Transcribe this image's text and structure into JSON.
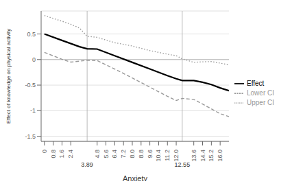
{
  "chart_data": {
    "type": "line",
    "xlabel": "Anxiety",
    "ylabel": "Effect of knowledge on physical activity",
    "xlim": [
      -0.3,
      16.8
    ],
    "ylim": [
      -1.6,
      0.95
    ],
    "xticks": [
      0,
      0.8,
      1.6,
      2.4,
      4.8,
      5.6,
      6.4,
      7.2,
      {
        "value": 8,
        "label": "8.0"
      },
      8.8,
      9.6,
      10.4,
      11.2,
      {
        "value": 12,
        "label": "12.0"
      },
      13.6,
      14.4,
      15.2,
      {
        "value": 16,
        "label": "16.0"
      }
    ],
    "yticks": [
      -1.5,
      -1,
      -0.5,
      0,
      0.5
    ],
    "grid": true,
    "legend": "right",
    "hline": 0,
    "vlines": [
      3.89,
      12.55
    ],
    "annotations": [
      {
        "x": 3.89,
        "text": "3.89"
      },
      {
        "x": 12.55,
        "text": "12.55"
      }
    ],
    "series": [
      {
        "name": "Effect",
        "color": "#000000",
        "line_style": "solid",
        "x": [
          0,
          1.6,
          3.2,
          3.89,
          4.8,
          6.4,
          8.0,
          9.6,
          11.2,
          12.0,
          12.55,
          13.6,
          14.4,
          15.2,
          16.0,
          16.8
        ],
        "values": [
          0.5,
          0.375,
          0.25,
          0.21,
          0.205,
          0.075,
          -0.055,
          -0.185,
          -0.315,
          -0.375,
          -0.41,
          -0.41,
          -0.445,
          -0.49,
          -0.555,
          -0.61
        ]
      },
      {
        "name": "Lower CI",
        "color": "#999999",
        "line_style": "dashed",
        "x": [
          0,
          1.6,
          2.4,
          3.89,
          4.8,
          6.4,
          8.0,
          9.6,
          11.2,
          12.0,
          12.55,
          13.6,
          14.4,
          15.2,
          16.0,
          16.8
        ],
        "values": [
          0.14,
          0.005,
          -0.05,
          -0.015,
          -0.02,
          -0.185,
          -0.36,
          -0.54,
          -0.72,
          -0.8,
          -0.76,
          -0.78,
          -0.87,
          -0.965,
          -1.06,
          -1.115
        ]
      },
      {
        "name": "Upper CI",
        "color": "#999999",
        "line_style": "dotted",
        "x": [
          0,
          1.6,
          2.4,
          3.2,
          3.89,
          4.8,
          6.4,
          8.0,
          9.6,
          11.2,
          12.0,
          12.55,
          13.6,
          14.4,
          15.2,
          16.0,
          16.8
        ],
        "values": [
          0.86,
          0.75,
          0.69,
          0.615,
          0.455,
          0.435,
          0.33,
          0.265,
          0.175,
          0.105,
          0.075,
          0.015,
          -0.055,
          -0.045,
          -0.04,
          -0.07,
          -0.105
        ]
      }
    ]
  }
}
